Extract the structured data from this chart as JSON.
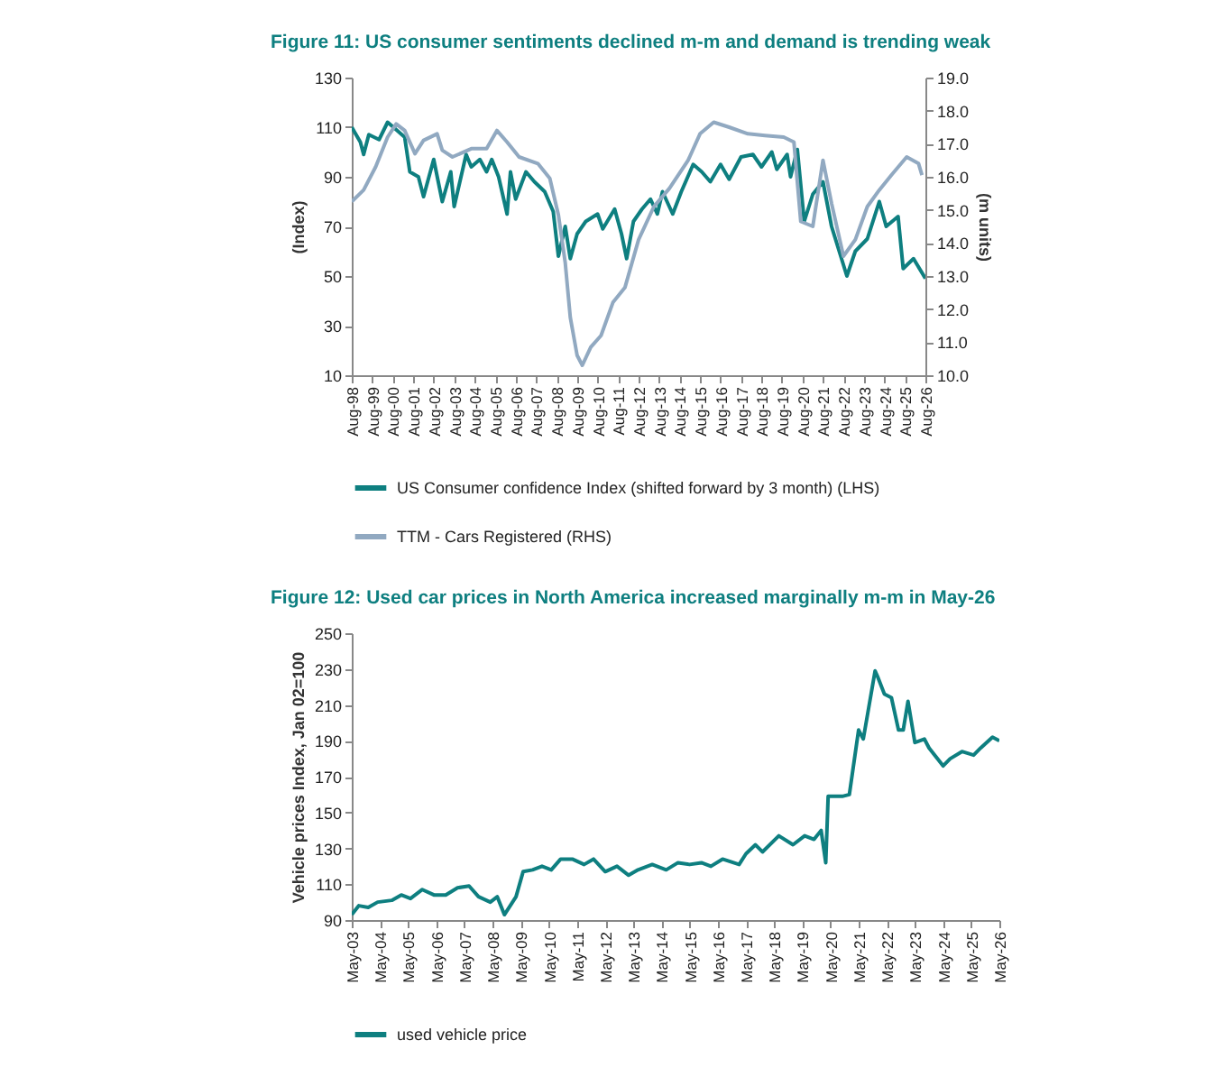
{
  "chart_data": [
    {
      "type": "line",
      "title": "Figure 11: US consumer sentiments declined m-m and demand is trending weak",
      "ylabel": "(Index)",
      "y2label": "(m units)",
      "legend": "bottom",
      "xlim": [
        "1998-08",
        "2026-08"
      ],
      "xticks": [
        {
          "value": "1998-08",
          "label": "Aug-98"
        },
        {
          "value": "1999-08",
          "label": "Aug-99"
        },
        {
          "value": "2000-08",
          "label": "Aug-00"
        },
        {
          "value": "2001-08",
          "label": "Aug-01"
        },
        {
          "value": "2002-08",
          "label": "Aug-02"
        },
        {
          "value": "2003-08",
          "label": "Aug-03"
        },
        {
          "value": "2004-08",
          "label": "Aug-04"
        },
        {
          "value": "2005-08",
          "label": "Aug-05"
        },
        {
          "value": "2006-08",
          "label": "Aug-06"
        },
        {
          "value": "2007-08",
          "label": "Aug-07"
        },
        {
          "value": "2008-08",
          "label": "Aug-08"
        },
        {
          "value": "2009-08",
          "label": "Aug-09"
        },
        {
          "value": "2010-08",
          "label": "Aug-10"
        },
        {
          "value": "2011-08",
          "label": "Aug-11"
        },
        {
          "value": "2012-08",
          "label": "Aug-12"
        },
        {
          "value": "2013-08",
          "label": "Aug-13"
        },
        {
          "value": "2014-08",
          "label": "Aug-14"
        },
        {
          "value": "2015-08",
          "label": "Aug-15"
        },
        {
          "value": "2016-08",
          "label": "Aug-16"
        },
        {
          "value": "2017-08",
          "label": "Aug-17"
        },
        {
          "value": "2018-08",
          "label": "Aug-18"
        },
        {
          "value": "2019-08",
          "label": "Aug-19"
        },
        {
          "value": "2020-08",
          "label": "Aug-20"
        },
        {
          "value": "2021-08",
          "label": "Aug-21"
        },
        {
          "value": "2022-08",
          "label": "Aug-22"
        },
        {
          "value": "2023-08",
          "label": "Aug-23"
        },
        {
          "value": "2024-08",
          "label": "Aug-24"
        },
        {
          "value": "2025-08",
          "label": "Aug-25"
        },
        {
          "value": "2026-08",
          "label": "Aug-26"
        }
      ],
      "ylim": [
        10,
        130
      ],
      "yticks": [
        10,
        30,
        50,
        70,
        90,
        110,
        130
      ],
      "y2lim": [
        10,
        19
      ],
      "y2ticks": [
        {
          "value": 10,
          "label": "10.0"
        },
        {
          "value": 11,
          "label": "11.0"
        },
        {
          "value": 12,
          "label": "12.0"
        },
        {
          "value": 13,
          "label": "13.0"
        },
        {
          "value": 14,
          "label": "14.0"
        },
        {
          "value": 15,
          "label": "15.0"
        },
        {
          "value": 16,
          "label": "16.0"
        },
        {
          "value": 17,
          "label": "17.0"
        },
        {
          "value": 18,
          "label": "18.0"
        },
        {
          "value": 19,
          "label": "19.0"
        }
      ],
      "series": [
        {
          "name": "US Consumer confidence Index (shifted forward by 3 month) (LHS)",
          "color": "#0e7f80",
          "x": [
            "1998-08",
            "1999-01",
            "1999-03",
            "1999-06",
            "1999-12",
            "2000-05",
            "2000-10",
            "2001-03",
            "2001-06",
            "2001-11",
            "2002-02",
            "2002-08",
            "2003-01",
            "2003-06",
            "2003-08",
            "2004-03",
            "2004-06",
            "2004-11",
            "2005-03",
            "2005-06",
            "2005-10",
            "2006-03",
            "2006-05",
            "2006-08",
            "2007-02",
            "2007-07",
            "2008-01",
            "2008-06",
            "2008-09",
            "2009-01",
            "2009-04",
            "2009-08",
            "2010-01",
            "2010-08",
            "2010-11",
            "2011-06",
            "2011-10",
            "2012-01",
            "2012-05",
            "2012-10",
            "2013-03",
            "2013-07",
            "2013-10",
            "2014-04",
            "2014-09",
            "2015-04",
            "2015-09",
            "2016-02",
            "2016-08",
            "2017-01",
            "2017-08",
            "2018-03",
            "2018-08",
            "2019-02",
            "2019-05",
            "2019-11",
            "2020-01",
            "2020-05",
            "2020-09",
            "2021-02",
            "2021-08",
            "2022-01",
            "2022-10",
            "2023-03",
            "2023-10",
            "2024-05",
            "2024-09",
            "2025-04",
            "2025-07",
            "2026-01",
            "2026-08"
          ],
          "values": [
            110,
            104,
            99,
            107,
            105,
            112,
            109,
            106,
            92,
            90,
            82,
            97,
            80,
            92,
            78,
            99,
            94,
            97,
            92,
            97,
            90,
            75,
            92,
            81,
            92,
            88,
            84,
            76,
            58,
            70,
            57,
            67,
            72,
            75,
            69,
            77,
            67,
            57,
            72,
            77,
            81,
            75,
            84,
            75,
            84,
            95,
            92,
            88,
            95,
            89,
            98,
            99,
            94,
            100,
            93,
            99,
            90,
            101,
            72,
            83,
            88,
            70,
            50,
            60,
            65,
            80,
            70,
            74,
            53,
            57,
            49
          ]
        },
        {
          "name": "TTM - Cars Registered (RHS)",
          "color": "#91a9c1",
          "axis": "y2",
          "x": [
            "1998-08",
            "1999-03",
            "1999-10",
            "2000-05",
            "2000-10",
            "2001-03",
            "2001-09",
            "2002-02",
            "2002-10",
            "2003-01",
            "2003-07",
            "2004-06",
            "2005-03",
            "2005-09",
            "2006-03",
            "2006-10",
            "2007-09",
            "2008-04",
            "2008-09",
            "2009-01",
            "2009-04",
            "2009-08",
            "2009-11",
            "2010-04",
            "2010-10",
            "2011-05",
            "2011-12",
            "2012-08",
            "2013-05",
            "2014-02",
            "2015-01",
            "2015-08",
            "2016-04",
            "2017-01",
            "2017-12",
            "2018-10",
            "2019-09",
            "2020-03",
            "2020-07",
            "2021-02",
            "2021-08",
            "2022-01",
            "2022-08",
            "2023-03",
            "2023-10",
            "2024-05",
            "2024-12",
            "2025-09",
            "2026-04",
            "2026-06"
          ],
          "values": [
            15.25,
            15.6,
            16.3,
            17.2,
            17.6,
            17.4,
            16.7,
            17.1,
            17.3,
            16.8,
            16.6,
            16.85,
            16.85,
            17.4,
            17.05,
            16.6,
            16.4,
            15.95,
            14.85,
            13.4,
            11.75,
            10.6,
            10.3,
            10.85,
            11.2,
            12.2,
            12.65,
            14.1,
            15.1,
            15.65,
            16.5,
            17.3,
            17.65,
            17.5,
            17.3,
            17.25,
            17.2,
            17.05,
            14.65,
            14.5,
            16.5,
            15.2,
            13.6,
            14.1,
            15.1,
            15.6,
            16.05,
            16.6,
            16.4,
            16.05
          ]
        }
      ]
    },
    {
      "type": "line",
      "title": "Figure 12: Used car prices in North America increased marginally m-m in May-26",
      "ylabel": "Vehicle prices Index, Jan 02=100",
      "legend": "bottom",
      "xlim": [
        "2003-05",
        "2026-05"
      ],
      "xticks": [
        {
          "value": "2003-05",
          "label": "May-03"
        },
        {
          "value": "2004-05",
          "label": "May-04"
        },
        {
          "value": "2005-05",
          "label": "May-05"
        },
        {
          "value": "2006-05",
          "label": "May-06"
        },
        {
          "value": "2007-05",
          "label": "May-07"
        },
        {
          "value": "2008-05",
          "label": "May-08"
        },
        {
          "value": "2009-05",
          "label": "May-09"
        },
        {
          "value": "2010-05",
          "label": "May-10"
        },
        {
          "value": "2011-05",
          "label": "May-11"
        },
        {
          "value": "2012-05",
          "label": "May-12"
        },
        {
          "value": "2013-05",
          "label": "May-13"
        },
        {
          "value": "2014-05",
          "label": "May-14"
        },
        {
          "value": "2015-05",
          "label": "May-15"
        },
        {
          "value": "2016-05",
          "label": "May-16"
        },
        {
          "value": "2017-05",
          "label": "May-17"
        },
        {
          "value": "2018-05",
          "label": "May-18"
        },
        {
          "value": "2019-05",
          "label": "May-19"
        },
        {
          "value": "2020-05",
          "label": "May-20"
        },
        {
          "value": "2021-05",
          "label": "May-21"
        },
        {
          "value": "2022-05",
          "label": "May-22"
        },
        {
          "value": "2023-05",
          "label": "May-23"
        },
        {
          "value": "2024-05",
          "label": "May-24"
        },
        {
          "value": "2025-05",
          "label": "May-25"
        },
        {
          "value": "2026-05",
          "label": "May-26"
        }
      ],
      "ylim": [
        90,
        250
      ],
      "yticks": [
        90,
        110,
        130,
        150,
        170,
        190,
        210,
        230,
        250
      ],
      "series": [
        {
          "name": "used vehicle price",
          "color": "#0e7f80",
          "x": [
            "2003-05",
            "2003-08",
            "2003-12",
            "2004-04",
            "2004-10",
            "2005-02",
            "2005-06",
            "2005-11",
            "2006-04",
            "2006-09",
            "2007-02",
            "2007-07",
            "2007-11",
            "2008-04",
            "2008-07",
            "2008-10",
            "2009-03",
            "2009-06",
            "2009-10",
            "2010-02",
            "2010-06",
            "2010-10",
            "2011-03",
            "2011-08",
            "2011-12",
            "2012-05",
            "2012-10",
            "2013-03",
            "2013-07",
            "2014-01",
            "2014-07",
            "2014-12",
            "2015-05",
            "2015-10",
            "2016-02",
            "2016-07",
            "2017-02",
            "2017-05",
            "2017-09",
            "2017-12",
            "2018-07",
            "2019-01",
            "2019-06",
            "2019-10",
            "2020-01",
            "2020-03",
            "2020-04",
            "2020-10",
            "2021-01",
            "2021-05",
            "2021-07",
            "2021-12",
            "2022-01",
            "2022-04",
            "2022-07",
            "2022-10",
            "2022-12",
            "2023-02",
            "2023-05",
            "2023-09",
            "2023-11",
            "2024-05",
            "2024-08",
            "2025-01",
            "2025-06",
            "2025-09",
            "2026-02",
            "2026-05"
          ],
          "values": [
            93,
            98,
            97,
            100,
            101,
            104,
            102,
            107,
            104,
            104,
            108,
            109,
            103,
            100,
            103,
            93,
            103,
            117,
            118,
            120,
            118,
            124,
            124,
            121,
            124,
            117,
            120,
            115,
            118,
            121,
            118,
            122,
            121,
            122,
            120,
            124,
            121,
            127,
            132,
            128,
            137,
            132,
            137,
            135,
            140,
            122,
            159,
            159,
            160,
            196,
            191,
            229,
            226,
            216,
            214,
            196,
            196,
            212,
            189,
            191,
            186,
            176,
            180,
            184,
            182,
            186,
            192,
            190
          ]
        }
      ]
    }
  ]
}
